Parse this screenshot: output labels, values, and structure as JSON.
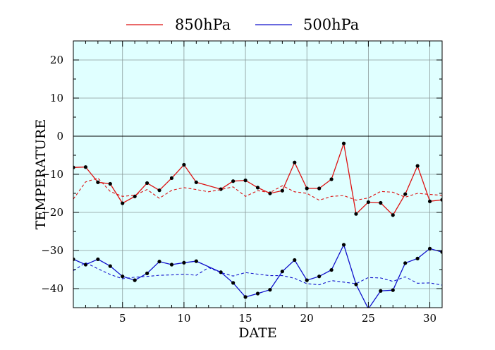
{
  "chart_data": {
    "type": "line",
    "title": "",
    "xlabel": "DATE",
    "ylabel": "TEMPERATURE",
    "xlim": [
      1,
      31
    ],
    "ylim": [
      -45,
      25
    ],
    "x_ticks": [
      5,
      10,
      15,
      20,
      25,
      30
    ],
    "y_ticks": [
      20,
      10,
      0,
      -10,
      -20,
      -30,
      -40
    ],
    "grid": true,
    "legend_position": "top",
    "background_color": "#e0ffff",
    "series": [
      {
        "name": "850hPa",
        "color": "#dd1111",
        "style": "solid",
        "markers": true,
        "x": [
          1,
          2,
          3,
          4,
          5,
          6,
          7,
          8,
          9,
          10,
          11,
          13,
          14,
          15,
          16,
          17,
          18,
          19,
          20,
          21,
          22,
          23,
          24,
          25,
          26,
          27,
          28,
          29,
          30,
          31
        ],
        "values": [
          -8.2,
          -8.1,
          -12.1,
          -12.5,
          -17.6,
          -15.8,
          -12.3,
          -14.2,
          -11.0,
          -7.5,
          -12.1,
          -13.9,
          -11.8,
          -11.6,
          -13.5,
          -15.0,
          -14.3,
          -6.9,
          -13.7,
          -13.7,
          -11.3,
          -1.9,
          -20.4,
          -17.3,
          -17.5,
          -20.7,
          -15.2,
          -7.8,
          -17.1,
          -16.7
        ]
      },
      {
        "name": "",
        "color": "#dd1111",
        "style": "dashed",
        "markers": false,
        "x": [
          1,
          2,
          3,
          4,
          5,
          6,
          7,
          8,
          9,
          10,
          11,
          12,
          13,
          14,
          15,
          16,
          17,
          18,
          19,
          20,
          21,
          22,
          23,
          24,
          25,
          26,
          27,
          28,
          29,
          30,
          31
        ],
        "values": [
          -16.5,
          -12.0,
          -11.0,
          -14.5,
          -15.8,
          -15.5,
          -14.0,
          -16.3,
          -14.2,
          -13.5,
          -14.0,
          -14.6,
          -14.0,
          -13.3,
          -15.8,
          -14.3,
          -14.8,
          -13.0,
          -14.6,
          -15.0,
          -16.8,
          -15.8,
          -15.6,
          -16.8,
          -16.2,
          -14.5,
          -14.7,
          -16.0,
          -15.0,
          -15.3,
          -15.5
        ]
      },
      {
        "name": "500hPa",
        "color": "#1111cc",
        "style": "solid",
        "markers": true,
        "x": [
          1,
          2,
          3,
          4,
          5,
          6,
          7,
          8,
          9,
          10,
          11,
          13,
          14,
          15,
          16,
          17,
          18,
          19,
          20,
          21,
          22,
          23,
          24,
          25,
          26,
          27,
          28,
          29,
          30,
          31
        ],
        "values": [
          -32.3,
          -33.7,
          -32.3,
          -34.1,
          -36.8,
          -37.8,
          -36.0,
          -32.9,
          -33.7,
          -33.2,
          -32.8,
          -35.7,
          -38.5,
          -42.2,
          -41.3,
          -40.3,
          -35.5,
          -32.5,
          -37.8,
          -36.8,
          -35.1,
          -28.5,
          -38.9,
          -45.3,
          -40.6,
          -40.4,
          -33.3,
          -32.1,
          -29.5,
          -30.4
        ]
      },
      {
        "name": "",
        "color": "#1111cc",
        "style": "dashed",
        "markers": false,
        "x": [
          1,
          2,
          3,
          4,
          5,
          6,
          7,
          8,
          9,
          10,
          11,
          12,
          13,
          14,
          15,
          16,
          17,
          18,
          19,
          20,
          21,
          22,
          23,
          24,
          25,
          26,
          27,
          28,
          29,
          30,
          31
        ],
        "values": [
          -35.3,
          -33.2,
          -34.8,
          -36.3,
          -37.4,
          -37.0,
          -36.8,
          -36.5,
          -36.4,
          -36.2,
          -36.5,
          -34.5,
          -35.8,
          -36.7,
          -35.8,
          -36.2,
          -36.6,
          -36.6,
          -37.3,
          -38.7,
          -39.0,
          -37.9,
          -38.3,
          -38.7,
          -37.1,
          -37.2,
          -38.1,
          -36.9,
          -38.6,
          -38.5,
          -39.1
        ]
      }
    ]
  }
}
